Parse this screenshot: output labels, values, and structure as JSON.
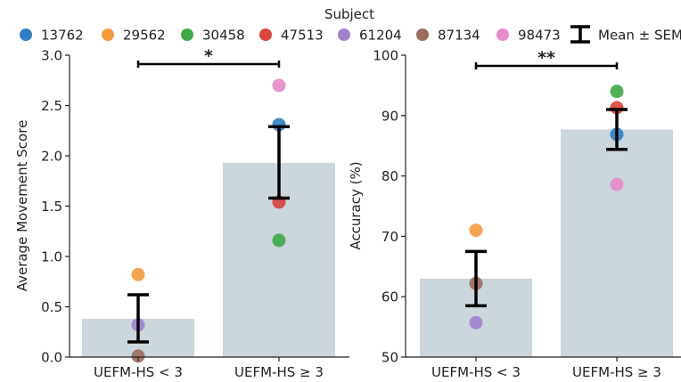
{
  "legend": {
    "title": "Subject",
    "entries": [
      {
        "label": "13762",
        "color": "#2f7fc0"
      },
      {
        "label": "29562",
        "color": "#f39a3f"
      },
      {
        "label": "30458",
        "color": "#3ea84a"
      },
      {
        "label": "47513",
        "color": "#d9443d"
      },
      {
        "label": "61204",
        "color": "#a181cc"
      },
      {
        "label": "87134",
        "color": "#9a6d5e"
      },
      {
        "label": "98473",
        "color": "#e48bc9"
      }
    ],
    "mean_label": "Mean ± SEM"
  },
  "chart_data": [
    {
      "type": "bar",
      "categories": [
        "UEFM-HS < 3",
        "UEFM-HS ≥ 3"
      ],
      "values": [
        0.38,
        1.93
      ],
      "sem_low": [
        0.15,
        1.58
      ],
      "sem_high": [
        0.62,
        2.29
      ],
      "ylabel": "Average Movement Score",
      "ylim": [
        0,
        3
      ],
      "yticks": [
        "0.0",
        "0.5",
        "1.0",
        "1.5",
        "2.0",
        "2.5",
        "3.0"
      ],
      "significance": "*",
      "bar_color": "#cbd7dd",
      "points": [
        {
          "subject": "29562",
          "category": 0,
          "value": 0.82
        },
        {
          "subject": "61204",
          "category": 0,
          "value": 0.32
        },
        {
          "subject": "87134",
          "category": 0,
          "value": 0.01
        },
        {
          "subject": "98473",
          "category": 1,
          "value": 2.7
        },
        {
          "subject": "13762",
          "category": 1,
          "value": 2.31
        },
        {
          "subject": "47513",
          "category": 1,
          "value": 1.54
        },
        {
          "subject": "30458",
          "category": 1,
          "value": 1.16
        }
      ]
    },
    {
      "type": "bar",
      "categories": [
        "UEFM-HS < 3",
        "UEFM-HS ≥ 3"
      ],
      "values": [
        63.0,
        87.7
      ],
      "sem_low": [
        58.5,
        84.4
      ],
      "sem_high": [
        67.5,
        91.0
      ],
      "ylabel": "Accuracy (%)",
      "ylim": [
        50,
        100
      ],
      "yticks": [
        "50",
        "60",
        "70",
        "80",
        "90",
        "100"
      ],
      "significance": "**",
      "bar_color": "#cbd7dd",
      "points": [
        {
          "subject": "29562",
          "category": 0,
          "value": 71.0
        },
        {
          "subject": "87134",
          "category": 0,
          "value": 62.2
        },
        {
          "subject": "61204",
          "category": 0,
          "value": 55.7
        },
        {
          "subject": "30458",
          "category": 1,
          "value": 94.0
        },
        {
          "subject": "47513",
          "category": 1,
          "value": 91.3
        },
        {
          "subject": "13762",
          "category": 1,
          "value": 86.9
        },
        {
          "subject": "98473",
          "category": 1,
          "value": 78.6
        }
      ]
    }
  ]
}
